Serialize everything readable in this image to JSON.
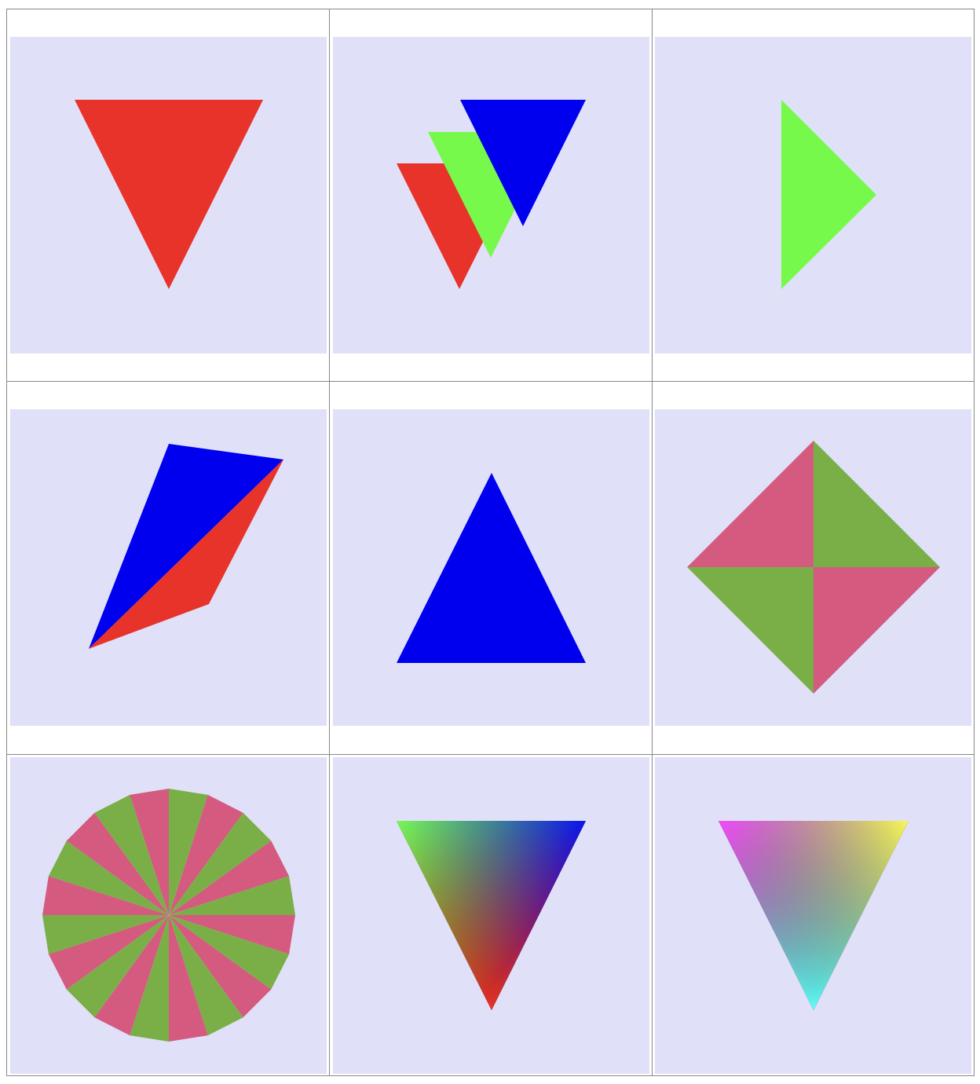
{
  "cells": [
    {
      "colors": [
        "#e8332a"
      ]
    },
    {
      "colors": [
        "#e8332a",
        "#77f94c",
        "#0000ee"
      ]
    },
    {
      "colors": [
        "#77f94c"
      ]
    },
    {
      "colors": [
        "#0000ee",
        "#e8332a"
      ]
    },
    {
      "colors": [
        "#0000ee"
      ]
    },
    {
      "colors": [
        "#d55a7f",
        "#7aaf48"
      ]
    },
    {
      "colors": [
        "#d55a7f",
        "#7aaf48"
      ]
    },
    {
      "colors": [
        "#77f94c",
        "#0000ee",
        "#e8332a"
      ]
    },
    {
      "colors": [
        "#f03cf8",
        "#f8f84c",
        "#66fcf8"
      ]
    }
  ]
}
